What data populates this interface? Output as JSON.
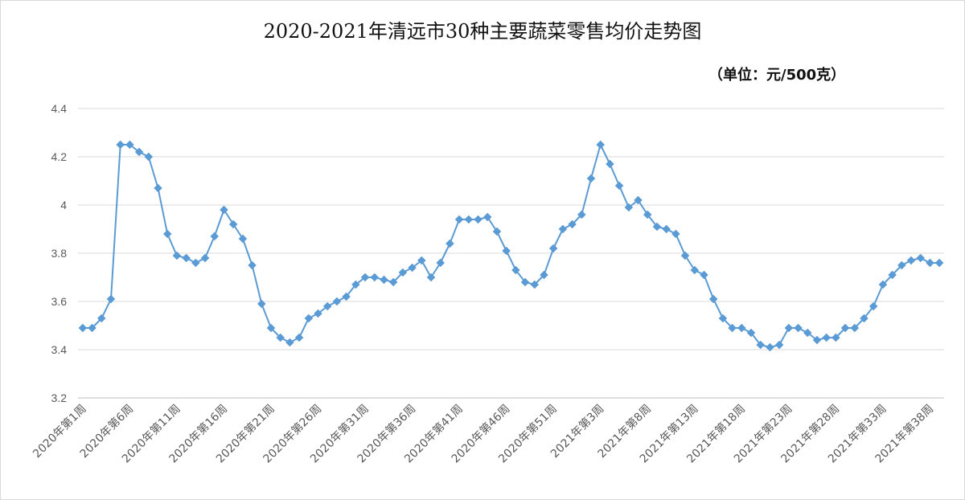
{
  "chart_data": {
    "type": "line",
    "title": "2020-2021年清远市30种主要蔬菜零售均价走势图",
    "unit_note": "（单位：元/500克）",
    "ylim": [
      3.2,
      4.4
    ],
    "y_ticks": [
      "3.2",
      "3.4",
      "3.6",
      "3.8",
      "4",
      "4.2",
      "4.4"
    ],
    "grid": "horizontal",
    "legend": "none",
    "colors": {
      "line": "#5b9bd5",
      "marker": "#5b9bd5",
      "grid": "#d9d9d9",
      "axis": "#bfbfbf"
    },
    "x_tick_labels": [
      "2020年第1周",
      "2020年第6周",
      "2020年第11周",
      "2020年第16周",
      "2020年第21周",
      "2020年第26周",
      "2020年第31周",
      "2020年第36周",
      "2020年第41周",
      "2020年第46周",
      "2020年第51周",
      "2021年第3周",
      "2021年第8周",
      "2021年第13周",
      "2021年第18周",
      "2021年第23周",
      "2021年第28周",
      "2021年第33周",
      "2021年第38周"
    ],
    "series": [
      {
        "values": [
          3.49,
          3.49,
          3.53,
          3.61,
          4.25,
          4.25,
          4.22,
          4.2,
          4.07,
          3.88,
          3.79,
          3.78,
          3.76,
          3.78,
          3.87,
          3.98,
          3.92,
          3.86,
          3.75,
          3.59,
          3.49,
          3.45,
          3.43,
          3.45,
          3.53,
          3.55,
          3.58,
          3.6,
          3.62,
          3.67,
          3.7,
          3.7,
          3.69,
          3.68,
          3.72,
          3.74,
          3.77,
          3.7,
          3.76,
          3.84,
          3.94,
          3.94,
          3.94,
          3.95,
          3.89,
          3.81,
          3.73,
          3.68,
          3.67,
          3.71,
          3.82,
          3.9,
          3.92,
          3.96,
          4.11,
          4.25,
          4.17,
          4.08,
          3.99,
          4.02,
          3.96,
          3.91,
          3.9,
          3.88,
          3.79,
          3.73,
          3.71,
          3.61,
          3.53,
          3.49,
          3.49,
          3.47,
          3.42,
          3.41,
          3.42,
          3.49,
          3.49,
          3.47,
          3.44,
          3.45,
          3.45,
          3.49,
          3.49,
          3.53,
          3.58,
          3.67,
          3.71,
          3.75,
          3.77,
          3.78,
          3.76,
          3.76
        ]
      }
    ]
  }
}
